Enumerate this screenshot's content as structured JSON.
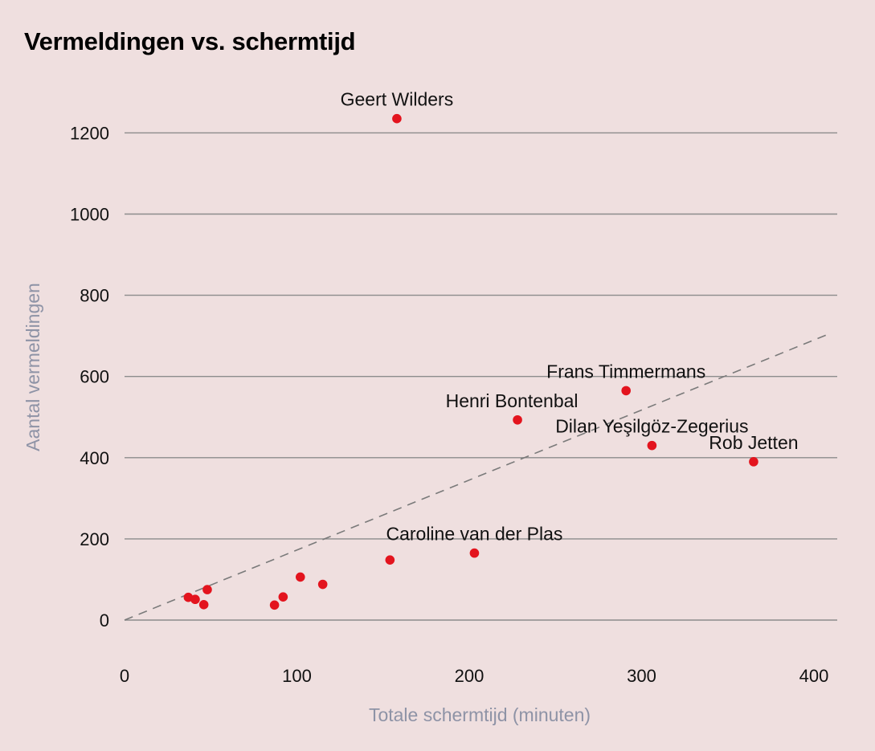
{
  "chart_data": {
    "type": "scatter",
    "title": "Vermeldingen vs. schermtijd",
    "xlabel": "Totale schermtijd (minuten)",
    "ylabel": "Aantal vermeldingen",
    "xlim": [
      0,
      415
    ],
    "ylim": [
      -90,
      1260
    ],
    "xticks": [
      0,
      100,
      200,
      300,
      400
    ],
    "yticks": [
      0,
      200,
      400,
      600,
      800,
      1000,
      1200
    ],
    "grid": "horizontal",
    "trendline": {
      "x": [
        0,
        410
      ],
      "y": [
        0,
        707
      ],
      "style": "dashed"
    },
    "points": [
      {
        "x": 158,
        "y": 1235,
        "label": "Geert Wilders"
      },
      {
        "x": 291,
        "y": 565,
        "label": "Frans Timmermans"
      },
      {
        "x": 228,
        "y": 493,
        "label": "Henri Bontenbal"
      },
      {
        "x": 306,
        "y": 430,
        "label": "Dilan Yeşilgöz-Zegerius"
      },
      {
        "x": 365,
        "y": 390,
        "label": "Rob Jetten"
      },
      {
        "x": 203,
        "y": 165,
        "label": "Caroline van der Plas"
      },
      {
        "x": 154,
        "y": 148,
        "label": ""
      },
      {
        "x": 102,
        "y": 106,
        "label": ""
      },
      {
        "x": 115,
        "y": 88,
        "label": ""
      },
      {
        "x": 92,
        "y": 57,
        "label": ""
      },
      {
        "x": 87,
        "y": 37,
        "label": ""
      },
      {
        "x": 48,
        "y": 75,
        "label": ""
      },
      {
        "x": 37,
        "y": 56,
        "label": ""
      },
      {
        "x": 41,
        "y": 51,
        "label": ""
      },
      {
        "x": 46,
        "y": 38,
        "label": ""
      }
    ]
  },
  "colors": {
    "background": "#efdfdf",
    "point": "#e3141e",
    "gridline": "#8c8c8c",
    "trendline": "#7a7a7a",
    "axis_label": "#8e93a6"
  }
}
